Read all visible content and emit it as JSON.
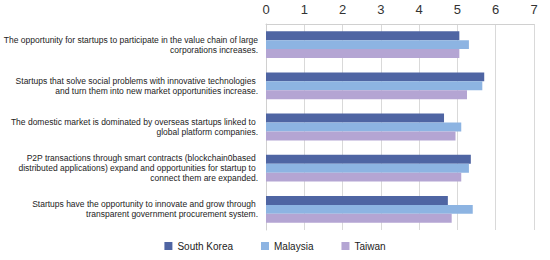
{
  "chart_data": {
    "type": "bar",
    "orientation": "horizontal",
    "categories": [
      "The opportunity for startups to participate in the value chain of large corporations increases.",
      "Startups that solve social problems with innovative technologies and turn them into new market opportunities increase.",
      "The domestic market is dominated by overseas startups linked to global platform companies.",
      "P2P transactions through smart contracts (blockchain0based distributed applications) expand and opportunities for startup to connect them are expanded.",
      "Startups have the opportunity to innovate and grow through transparent government procurement system."
    ],
    "series": [
      {
        "name": "South Korea",
        "color": "#4f65a3",
        "values": [
          5.05,
          5.7,
          4.65,
          5.35,
          4.75
        ]
      },
      {
        "name": "Malaysia",
        "color": "#8db4e2",
        "values": [
          5.3,
          5.65,
          5.1,
          5.3,
          5.4
        ]
      },
      {
        "name": "Taiwan",
        "color": "#b4a5d3",
        "values": [
          5.05,
          5.25,
          4.95,
          5.1,
          4.85
        ]
      }
    ],
    "xlim": [
      0,
      7
    ],
    "xticks": [
      0,
      1,
      2,
      3,
      4,
      5,
      6,
      7
    ],
    "grid": true,
    "legend": "bottom"
  }
}
